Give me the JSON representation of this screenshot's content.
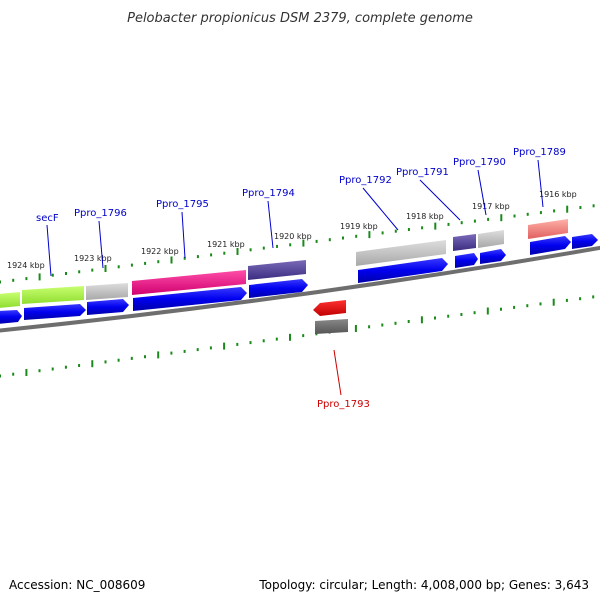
{
  "title": "Pelobacter propionicus DSM 2379, complete genome",
  "footer": {
    "accession": "Accession: NC_008609",
    "summary": "Topology: circular; Length: 4,008,000 bp; Genes: 3,643"
  },
  "kbp_labels": [
    "1924 kbp",
    "1923 kbp",
    "1922 kbp",
    "1921 kbp",
    "1920 kbp",
    "1919 kbp",
    "1918 kbp",
    "1917 kbp",
    "1916 kbp"
  ],
  "gene_labels": [
    {
      "name": "secF",
      "color": "#0000cc"
    },
    {
      "name": "Ppro_1796",
      "color": "#0000cc"
    },
    {
      "name": "Ppro_1795",
      "color": "#0000cc"
    },
    {
      "name": "Ppro_1794",
      "color": "#0000cc"
    },
    {
      "name": "Ppro_1792",
      "color": "#0000cc"
    },
    {
      "name": "Ppro_1791",
      "color": "#0000cc"
    },
    {
      "name": "Ppro_1790",
      "color": "#0000cc"
    },
    {
      "name": "Ppro_1789",
      "color": "#0000cc"
    },
    {
      "name": "Ppro_1793",
      "color": "#cc0000"
    }
  ],
  "colors": {
    "backbone": "#808080",
    "tick": "#1a8a1a",
    "cds": "#0000ff",
    "cds_reverse": "#ff0000"
  }
}
